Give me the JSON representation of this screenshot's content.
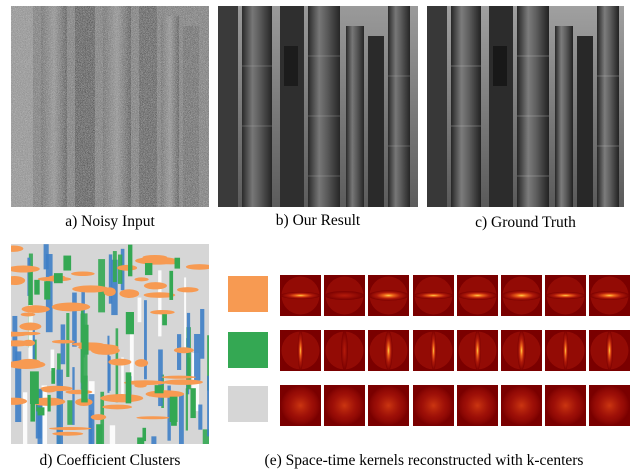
{
  "captions": {
    "a": "a) Noisy Input",
    "b": "b) Our Result",
    "c": "c) Ground Truth",
    "d": "d) Coefficient Clusters",
    "e": "(e) Space-time kernels reconstructed with k-centers"
  },
  "colors": {
    "cluster_orange": "#f79a52",
    "cluster_green": "#34a853",
    "cluster_gray": "#d6d6d6",
    "kernel_bg": "#7a0000",
    "kernel_glow": "#ffd34a"
  },
  "kernel_rows": [
    {
      "cluster": "orange",
      "orientation": "horizontal",
      "count": 8
    },
    {
      "cluster": "green",
      "orientation": "vertical",
      "count": 8
    },
    {
      "cluster": "gray",
      "orientation": "blurred",
      "count": 8
    }
  ]
}
